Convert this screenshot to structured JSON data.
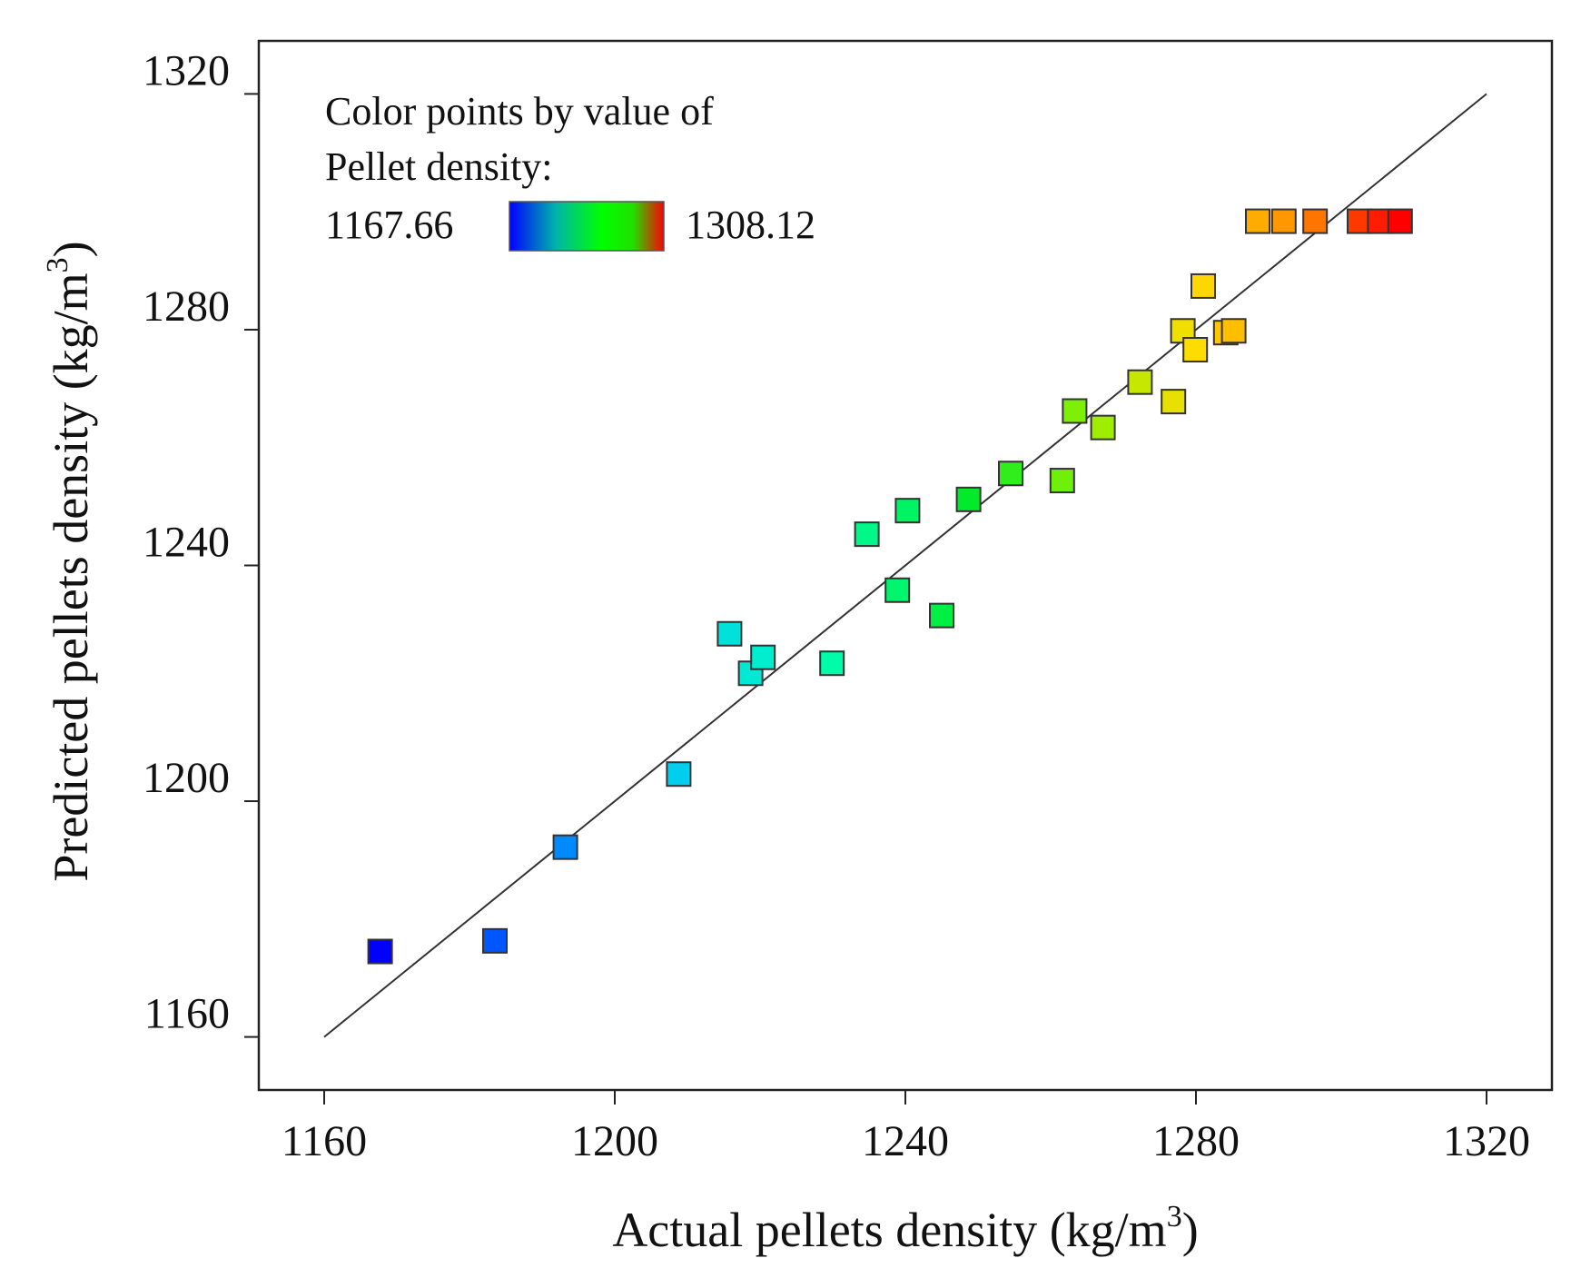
{
  "chart_data": {
    "type": "scatter",
    "xlabel": "Actual pellets density (kg/m",
    "xlabel_sup": "3",
    "xlabel_close": ")",
    "ylabel": "Predicted pellets density (kg/m",
    "ylabel_sup": "3",
    "ylabel_close": ")",
    "xlim": [
      1151,
      1329
    ],
    "ylim": [
      1151,
      1329
    ],
    "xticks": [
      1160,
      1200,
      1240,
      1280,
      1320
    ],
    "yticks": [
      1160,
      1200,
      1240,
      1280,
      1320
    ],
    "xtick_labels": [
      "1160",
      "1200",
      "1240",
      "1280",
      "1320"
    ],
    "ytick_labels": [
      "1160",
      "1200",
      "1240",
      "1280",
      "1320"
    ],
    "reference_line": {
      "from": [
        1160,
        1160
      ],
      "to": [
        1320,
        1320
      ]
    },
    "legend": {
      "title_line1": "Color points by value of",
      "title_line2": "Pellet density:",
      "min_label": "1167.66",
      "max_label": "1308.12",
      "min_value": 1167.66,
      "max_value": 1308.12,
      "position": "top-left",
      "gradient_colors": [
        "#0000ff",
        "#00ff00",
        "#ff0000"
      ]
    },
    "points": [
      {
        "x": 1167.7,
        "y": 1174.5
      },
      {
        "x": 1183.5,
        "y": 1176.3
      },
      {
        "x": 1193.2,
        "y": 1192.2
      },
      {
        "x": 1208.8,
        "y": 1204.6
      },
      {
        "x": 1215.8,
        "y": 1228.4
      },
      {
        "x": 1218.7,
        "y": 1221.7
      },
      {
        "x": 1220.4,
        "y": 1224.4
      },
      {
        "x": 1229.9,
        "y": 1223.4
      },
      {
        "x": 1234.7,
        "y": 1245.3
      },
      {
        "x": 1238.9,
        "y": 1235.8
      },
      {
        "x": 1240.3,
        "y": 1249.3
      },
      {
        "x": 1245.0,
        "y": 1231.5
      },
      {
        "x": 1248.7,
        "y": 1251.2
      },
      {
        "x": 1254.5,
        "y": 1255.6
      },
      {
        "x": 1261.6,
        "y": 1254.4
      },
      {
        "x": 1263.3,
        "y": 1266.2
      },
      {
        "x": 1267.2,
        "y": 1263.4
      },
      {
        "x": 1272.3,
        "y": 1271.1
      },
      {
        "x": 1276.9,
        "y": 1267.8
      },
      {
        "x": 1278.2,
        "y": 1279.8
      },
      {
        "x": 1279.9,
        "y": 1276.6
      },
      {
        "x": 1281.0,
        "y": 1287.4
      },
      {
        "x": 1284.1,
        "y": 1279.5
      },
      {
        "x": 1285.2,
        "y": 1279.8
      },
      {
        "x": 1288.5,
        "y": 1298.4
      },
      {
        "x": 1292.1,
        "y": 1298.4
      },
      {
        "x": 1296.4,
        "y": 1298.4
      },
      {
        "x": 1302.5,
        "y": 1298.4
      },
      {
        "x": 1305.3,
        "y": 1298.4
      },
      {
        "x": 1308.1,
        "y": 1298.4
      }
    ]
  }
}
